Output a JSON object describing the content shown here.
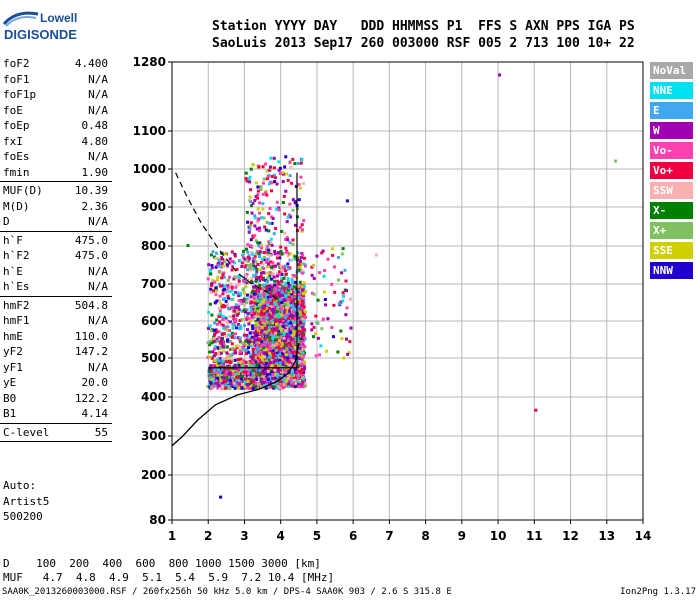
{
  "logo": {
    "line1": "Lowell",
    "line2": "DIGISONDE"
  },
  "header": {
    "line1": "Station YYYY DAY   DDD HHMMSS P1  FFS S AXN PPS IGA PS",
    "line2": "SaoLuis 2013 Sep17 260 003000 RSF 005 2 713 100 10+ 22"
  },
  "params": {
    "group1": [
      {
        "label": "foF2",
        "value": "4.400"
      },
      {
        "label": "foF1",
        "value": "N/A"
      },
      {
        "label": "foF1p",
        "value": "N/A"
      },
      {
        "label": "foE",
        "value": "N/A"
      },
      {
        "label": "foEp",
        "value": "0.48"
      },
      {
        "label": "fxI",
        "value": "4.80"
      },
      {
        "label": "foEs",
        "value": "N/A"
      },
      {
        "label": "fmin",
        "value": "1.90"
      }
    ],
    "group2": [
      {
        "label": "MUF(D)",
        "value": "10.39"
      },
      {
        "label": "M(D)",
        "value": "2.36"
      },
      {
        "label": "D",
        "value": "N/A"
      }
    ],
    "group3": [
      {
        "label": "h`F",
        "value": "475.0"
      },
      {
        "label": "h`F2",
        "value": "475.0"
      },
      {
        "label": "h`E",
        "value": "N/A"
      },
      {
        "label": "h`Es",
        "value": "N/A"
      }
    ],
    "group4": [
      {
        "label": "hmF2",
        "value": "504.8"
      },
      {
        "label": "hmF1",
        "value": "N/A"
      },
      {
        "label": "hmE",
        "value": "110.0"
      },
      {
        "label": "yF2",
        "value": "147.2"
      },
      {
        "label": "yF1",
        "value": "N/A"
      },
      {
        "label": "yE",
        "value": "20.0"
      },
      {
        "label": "B0",
        "value": "122.2"
      },
      {
        "label": "B1",
        "value": "4.14"
      }
    ],
    "group5": [
      {
        "label": "C-level",
        "value": "55"
      }
    ]
  },
  "auto": {
    "line1": "Auto:",
    "line2": "Artist5",
    "line3": "500200"
  },
  "muf_table": {
    "d_line": "D    100  200  400  600  800 1000 1500 3000 [km]",
    "muf_line": "MUF   4.7  4.8  4.9  5.1  5.4  5.9  7.2 10.4 [MHz]"
  },
  "footer": {
    "left": "SAA0K_2013260003000.RSF / 260fx256h 50 kHz 5.0 km / DPS-4 SAA0K 903 / 2.6 S 315.8 E",
    "right": "Ion2Png 1.3.17"
  },
  "legend": [
    {
      "label": "NoVal",
      "color": "#a8a8a8"
    },
    {
      "label": "NNE",
      "color": "#00e0f0"
    },
    {
      "label": "E",
      "color": "#40a8f0"
    },
    {
      "label": "W",
      "color": "#a000b0"
    },
    {
      "label": "Vo-",
      "color": "#ff40b0"
    },
    {
      "label": "Vo+",
      "color": "#f00040"
    },
    {
      "label": "SSW",
      "color": "#f8b0b0"
    },
    {
      "label": "X-",
      "color": "#008000"
    },
    {
      "label": "X+",
      "color": "#80c060"
    },
    {
      "label": "SSE",
      "color": "#d0d000"
    },
    {
      "label": "NNW",
      "color": "#2000d0"
    }
  ],
  "chart_data": {
    "type": "scatter",
    "xlabel": "",
    "ylabel": "",
    "xlim": [
      1,
      14
    ],
    "ylim": [
      80,
      1280
    ],
    "xticks": [
      1,
      2,
      3,
      4,
      5,
      6,
      7,
      8,
      9,
      10,
      11,
      12,
      13,
      14
    ],
    "yticks": [
      80,
      200,
      300,
      400,
      500,
      600,
      700,
      800,
      900,
      1000,
      1100,
      1280
    ],
    "grid": true,
    "profile_curve": {
      "x": [
        1.0,
        1.3,
        1.7,
        2.2,
        2.8,
        3.4,
        3.9,
        4.2,
        4.4,
        4.5
      ],
      "y": [
        275,
        300,
        340,
        380,
        405,
        420,
        440,
        460,
        490,
        540
      ]
    },
    "dashed_curve": {
      "x": [
        1.1,
        1.4,
        1.8,
        2.3,
        2.8,
        3.2,
        3.6,
        3.9
      ],
      "y": [
        990,
        930,
        860,
        790,
        730,
        700,
        680,
        660
      ]
    },
    "trace_lines": [
      {
        "x": [
          4.45,
          4.45
        ],
        "y": [
          475,
          990
        ]
      },
      {
        "x": [
          2.0,
          4.5
        ],
        "y": [
          475,
          475
        ]
      }
    ],
    "scatter_cloud": {
      "x_range": [
        1.9,
        4.7
      ],
      "y_range": [
        420,
        1060
      ],
      "density": "dense core between x 3.2-4.6, y 450-700"
    },
    "outliers": [
      {
        "x": 10.0,
        "y": 1250,
        "series": "W"
      },
      {
        "x": 11.0,
        "y": 370,
        "series": "Vo+"
      },
      {
        "x": 13.2,
        "y": 1025,
        "series": "X+"
      },
      {
        "x": 2.3,
        "y": 145,
        "series": "NNW"
      },
      {
        "x": 5.8,
        "y": 920,
        "series": "NNW"
      },
      {
        "x": 6.6,
        "y": 780,
        "series": "SSW"
      },
      {
        "x": 1.4,
        "y": 805,
        "series": "X-"
      }
    ]
  }
}
